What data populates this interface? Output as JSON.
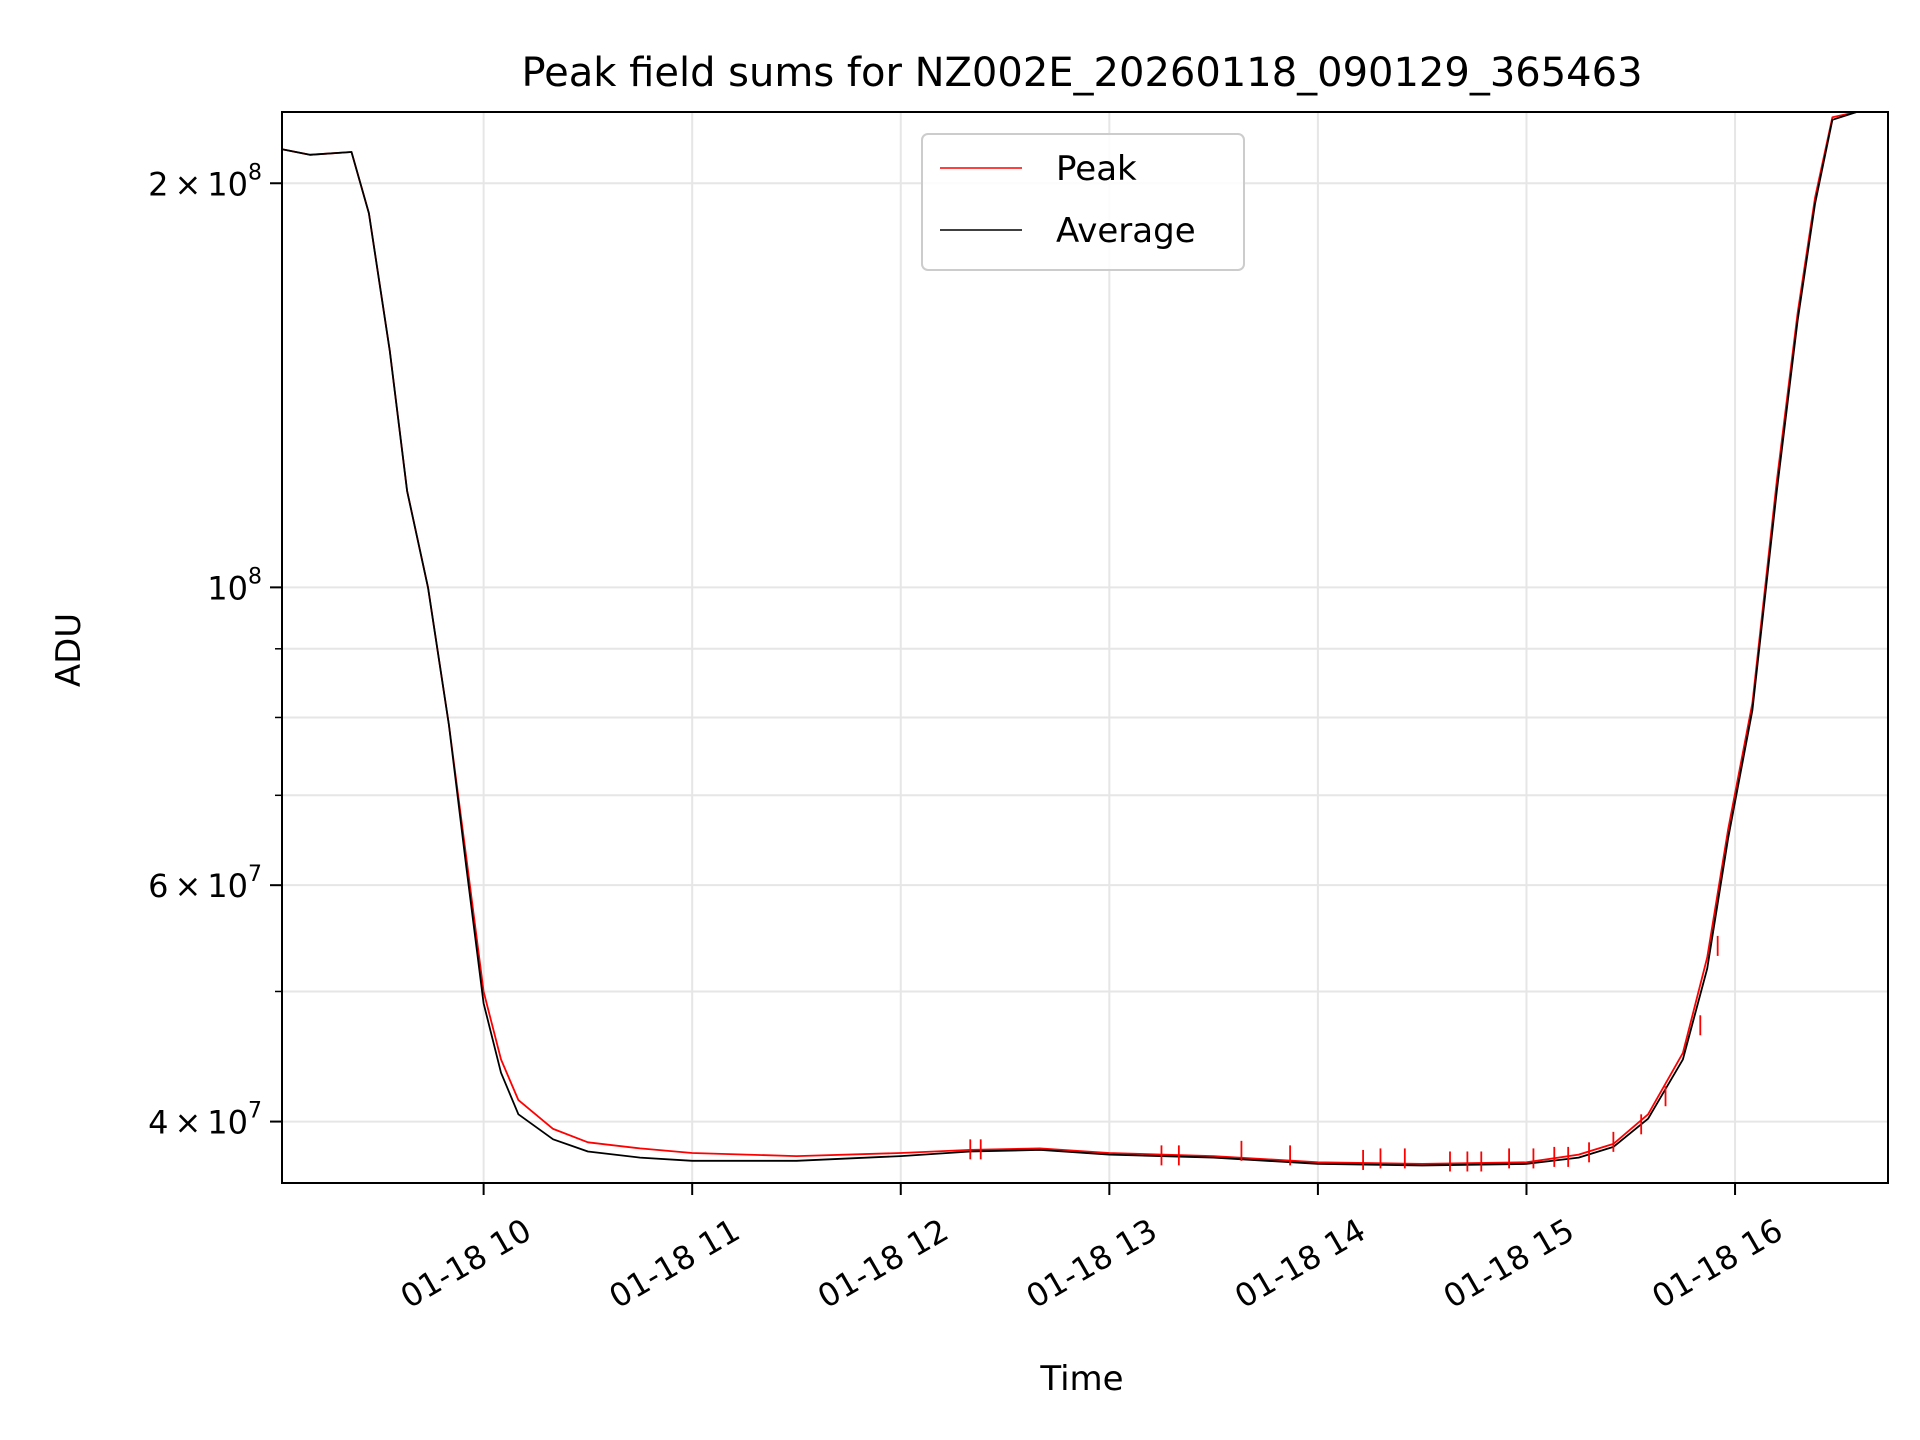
{
  "chart_data": {
    "type": "line",
    "title": "Peak field sums for NZ002E_20260118_090129_365463",
    "xlabel": "Time",
    "ylabel": "ADU",
    "x_scale": "time",
    "y_scale": "log",
    "xlim": [
      "2026-01-18 09:02",
      "2026-01-18 16:44"
    ],
    "ylim": [
      36000000,
      226000000
    ],
    "grid": true,
    "legend_placement": "upper-center",
    "x_ticks": [
      {
        "value": "2026-01-18 10:00",
        "label": "01-18 10"
      },
      {
        "value": "2026-01-18 11:00",
        "label": "01-18 11"
      },
      {
        "value": "2026-01-18 12:00",
        "label": "01-18 12"
      },
      {
        "value": "2026-01-18 13:00",
        "label": "01-18 13"
      },
      {
        "value": "2026-01-18 14:00",
        "label": "01-18 14"
      },
      {
        "value": "2026-01-18 15:00",
        "label": "01-18 15"
      },
      {
        "value": "2026-01-18 16:00",
        "label": "01-18 16"
      }
    ],
    "y_ticks": [
      {
        "value": 40000000,
        "base": "4",
        "mult": "×",
        "exp_base": "10",
        "exp": "7"
      },
      {
        "value": 60000000,
        "base": "6",
        "mult": "×",
        "exp_base": "10",
        "exp": "7"
      },
      {
        "value": 100000000,
        "base": "",
        "mult": "",
        "exp_base": "10",
        "exp": "8"
      },
      {
        "value": 200000000,
        "base": "2",
        "mult": "×",
        "exp_base": "10",
        "exp": "8"
      }
    ],
    "y_minor_ticks": [
      50000000,
      70000000,
      80000000,
      90000000
    ],
    "series": [
      {
        "name": "Peak",
        "color": "#ff0000",
        "points": [
          [
            "2026-01-18 09:02",
            212000000
          ],
          [
            "2026-01-18 09:10",
            210000000
          ],
          [
            "2026-01-18 09:22",
            211000000
          ],
          [
            "2026-01-18 09:27",
            190000000
          ],
          [
            "2026-01-18 09:33",
            150000000
          ],
          [
            "2026-01-18 09:38",
            118000000
          ],
          [
            "2026-01-18 09:44",
            100000000
          ],
          [
            "2026-01-18 09:50",
            79000000
          ],
          [
            "2026-01-18 09:55",
            63000000
          ],
          [
            "2026-01-18 10:00",
            50000000
          ],
          [
            "2026-01-18 10:05",
            44500000
          ],
          [
            "2026-01-18 10:10",
            41500000
          ],
          [
            "2026-01-18 10:20",
            39500000
          ],
          [
            "2026-01-18 10:30",
            38600000
          ],
          [
            "2026-01-18 10:45",
            38200000
          ],
          [
            "2026-01-18 11:00",
            37900000
          ],
          [
            "2026-01-18 11:30",
            37700000
          ],
          [
            "2026-01-18 12:00",
            37900000
          ],
          [
            "2026-01-18 12:20",
            38100000
          ],
          [
            "2026-01-18 12:40",
            38200000
          ],
          [
            "2026-01-18 13:00",
            37900000
          ],
          [
            "2026-01-18 13:30",
            37700000
          ],
          [
            "2026-01-18 14:00",
            37300000
          ],
          [
            "2026-01-18 14:30",
            37200000
          ],
          [
            "2026-01-18 15:00",
            37300000
          ],
          [
            "2026-01-18 15:15",
            37800000
          ],
          [
            "2026-01-18 15:25",
            38500000
          ],
          [
            "2026-01-18 15:35",
            40500000
          ],
          [
            "2026-01-18 15:45",
            45000000
          ],
          [
            "2026-01-18 15:52",
            53000000
          ],
          [
            "2026-01-18 15:58",
            66000000
          ],
          [
            "2026-01-18 16:05",
            82000000
          ],
          [
            "2026-01-18 16:12",
            120000000
          ],
          [
            "2026-01-18 16:18",
            160000000
          ],
          [
            "2026-01-18 16:23",
            195000000
          ],
          [
            "2026-01-18 16:28",
            224000000
          ],
          [
            "2026-01-18 16:35",
            226000000
          ],
          [
            "2026-01-18 16:44",
            226000000
          ]
        ],
        "spikes": [
          [
            "2026-01-18 12:20",
            38800000
          ],
          [
            "2026-01-18 12:23",
            38800000
          ],
          [
            "2026-01-18 13:15",
            38400000
          ],
          [
            "2026-01-18 13:20",
            38400000
          ],
          [
            "2026-01-18 13:38",
            38700000
          ],
          [
            "2026-01-18 13:52",
            38400000
          ],
          [
            "2026-01-18 14:13",
            38100000
          ],
          [
            "2026-01-18 14:18",
            38200000
          ],
          [
            "2026-01-18 14:25",
            38200000
          ],
          [
            "2026-01-18 14:38",
            38000000
          ],
          [
            "2026-01-18 14:43",
            38000000
          ],
          [
            "2026-01-18 14:47",
            38000000
          ],
          [
            "2026-01-18 14:55",
            38200000
          ],
          [
            "2026-01-18 15:02",
            38200000
          ],
          [
            "2026-01-18 15:08",
            38300000
          ],
          [
            "2026-01-18 15:12",
            38300000
          ],
          [
            "2026-01-18 15:18",
            38600000
          ],
          [
            "2026-01-18 15:25",
            39300000
          ],
          [
            "2026-01-18 15:33",
            40500000
          ],
          [
            "2026-01-18 15:40",
            42500000
          ],
          [
            "2026-01-18 15:50",
            48000000
          ],
          [
            "2026-01-18 15:55",
            55000000
          ]
        ]
      },
      {
        "name": "Average",
        "color": "#000000",
        "points": [
          [
            "2026-01-18 09:02",
            212000000
          ],
          [
            "2026-01-18 09:10",
            210000000
          ],
          [
            "2026-01-18 09:22",
            211000000
          ],
          [
            "2026-01-18 09:27",
            190000000
          ],
          [
            "2026-01-18 09:33",
            150000000
          ],
          [
            "2026-01-18 09:38",
            118000000
          ],
          [
            "2026-01-18 09:44",
            100000000
          ],
          [
            "2026-01-18 09:50",
            79000000
          ],
          [
            "2026-01-18 09:55",
            62000000
          ],
          [
            "2026-01-18 10:00",
            49000000
          ],
          [
            "2026-01-18 10:05",
            43500000
          ],
          [
            "2026-01-18 10:10",
            40500000
          ],
          [
            "2026-01-18 10:20",
            38800000
          ],
          [
            "2026-01-18 10:30",
            38000000
          ],
          [
            "2026-01-18 10:45",
            37600000
          ],
          [
            "2026-01-18 11:00",
            37400000
          ],
          [
            "2026-01-18 11:30",
            37400000
          ],
          [
            "2026-01-18 12:00",
            37700000
          ],
          [
            "2026-01-18 12:20",
            38000000
          ],
          [
            "2026-01-18 12:40",
            38100000
          ],
          [
            "2026-01-18 13:00",
            37800000
          ],
          [
            "2026-01-18 13:30",
            37600000
          ],
          [
            "2026-01-18 14:00",
            37200000
          ],
          [
            "2026-01-18 14:30",
            37100000
          ],
          [
            "2026-01-18 15:00",
            37200000
          ],
          [
            "2026-01-18 15:15",
            37600000
          ],
          [
            "2026-01-18 15:25",
            38300000
          ],
          [
            "2026-01-18 15:35",
            40200000
          ],
          [
            "2026-01-18 15:45",
            44500000
          ],
          [
            "2026-01-18 15:52",
            52000000
          ],
          [
            "2026-01-18 15:58",
            65000000
          ],
          [
            "2026-01-18 16:05",
            81000000
          ],
          [
            "2026-01-18 16:12",
            118000000
          ],
          [
            "2026-01-18 16:18",
            158000000
          ],
          [
            "2026-01-18 16:23",
            193000000
          ],
          [
            "2026-01-18 16:28",
            223000000
          ],
          [
            "2026-01-18 16:35",
            226000000
          ],
          [
            "2026-01-18 16:44",
            226000000
          ]
        ]
      }
    ]
  }
}
